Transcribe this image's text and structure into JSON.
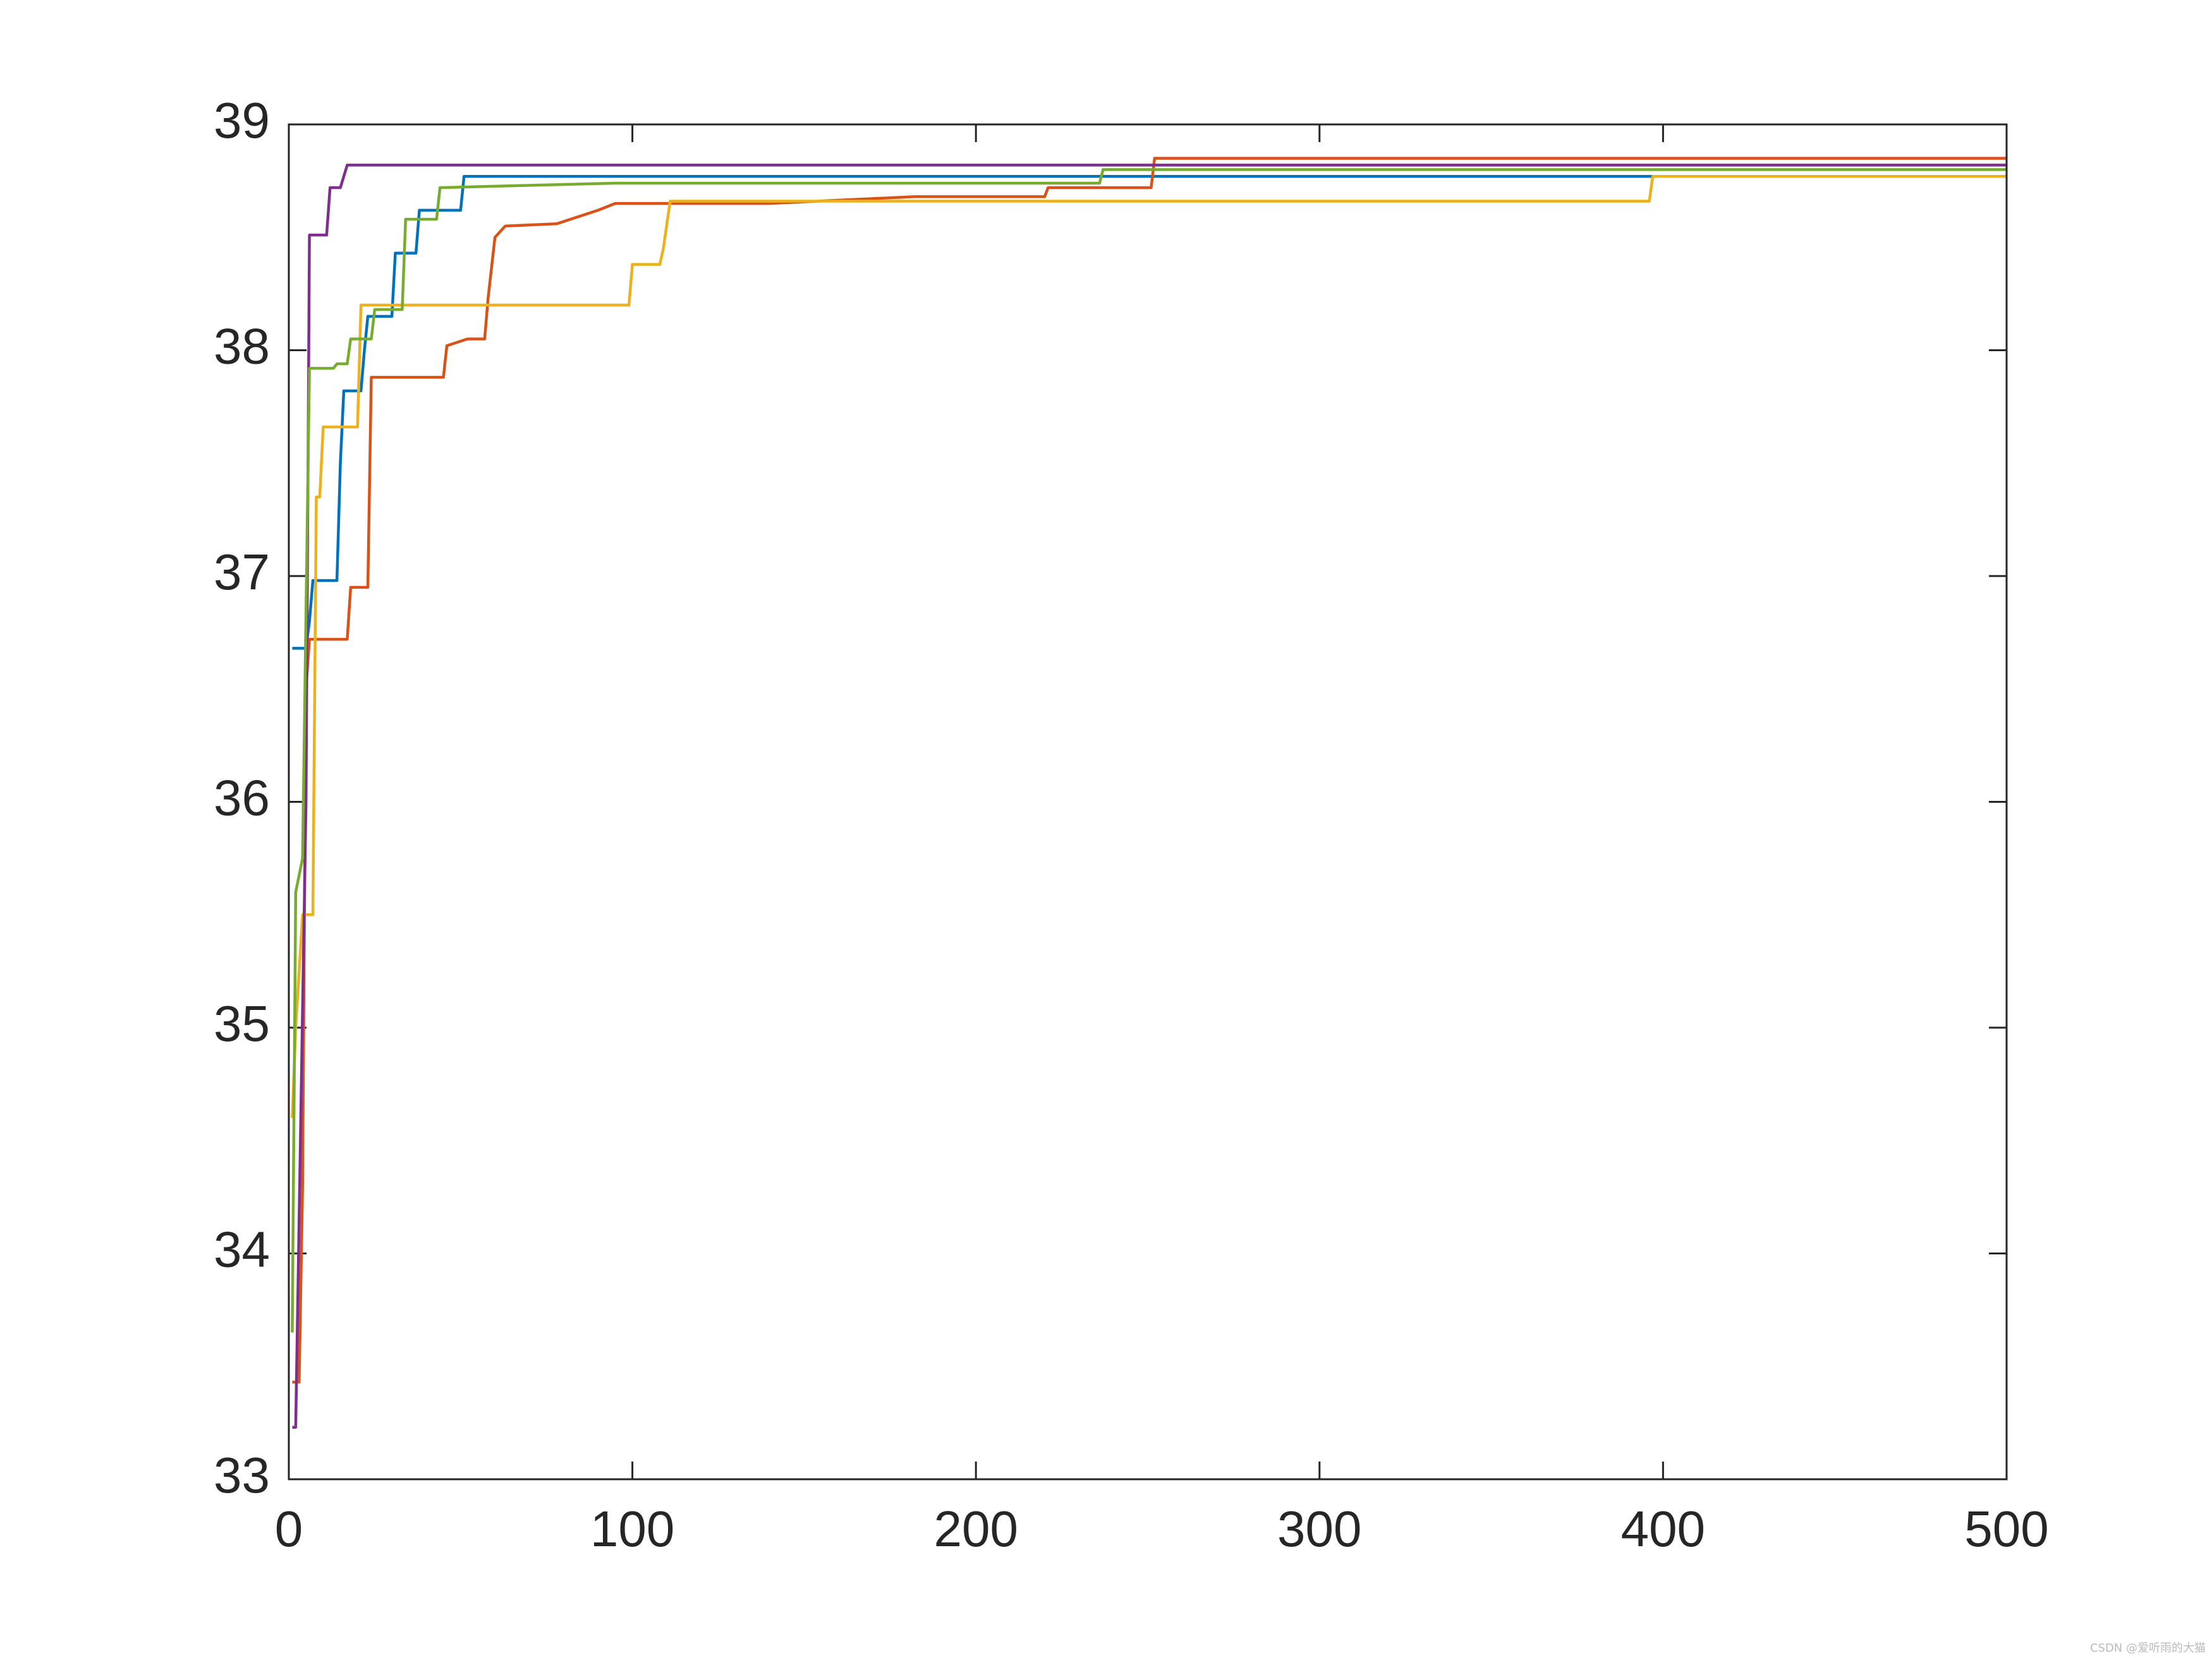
{
  "chart_data": {
    "type": "line",
    "xlim": [
      0,
      500
    ],
    "ylim": [
      33,
      39
    ],
    "xticks": [
      0,
      100,
      200,
      300,
      400,
      500
    ],
    "yticks": [
      33,
      34,
      35,
      36,
      37,
      38,
      39
    ],
    "series": [
      {
        "color": "#0072bd",
        "x": [
          1,
          5,
          6,
          7,
          14,
          15,
          16,
          21,
          22,
          23,
          30,
          31,
          37,
          38,
          50,
          51,
          500
        ],
        "values": [
          36.68,
          36.68,
          36.8,
          36.98,
          36.98,
          37.5,
          37.82,
          37.82,
          38.0,
          38.15,
          38.15,
          38.43,
          38.43,
          38.62,
          38.62,
          38.77,
          38.77
        ]
      },
      {
        "color": "#d95319",
        "x": [
          1,
          3,
          4,
          5,
          6,
          17,
          18,
          23,
          24,
          45,
          46,
          52,
          57,
          58,
          60,
          63,
          78,
          90,
          95,
          140,
          182,
          220,
          221,
          251,
          252,
          500
        ],
        "values": [
          33.43,
          33.43,
          34.3,
          36.5,
          36.72,
          36.72,
          36.95,
          36.95,
          37.88,
          37.88,
          38.02,
          38.05,
          38.05,
          38.23,
          38.5,
          38.55,
          38.56,
          38.62,
          38.65,
          38.65,
          38.68,
          38.68,
          38.72,
          38.72,
          38.85,
          38.85
        ]
      },
      {
        "color": "#edb120",
        "x": [
          1,
          2,
          4,
          7,
          8,
          9,
          10,
          20,
          21,
          99,
          100,
          108,
          109,
          111,
          396,
          397,
          500
        ],
        "values": [
          34.6,
          35.0,
          35.5,
          35.5,
          37.35,
          37.35,
          37.66,
          37.66,
          38.2,
          38.2,
          38.38,
          38.38,
          38.45,
          38.66,
          38.66,
          38.77,
          38.77
        ]
      },
      {
        "color": "#7e2f8e",
        "x": [
          1,
          2,
          5,
          6,
          11,
          12,
          15,
          17,
          500
        ],
        "values": [
          33.23,
          33.23,
          36.0,
          38.51,
          38.51,
          38.72,
          38.72,
          38.82,
          38.82
        ]
      },
      {
        "color": "#77ac30",
        "x": [
          1,
          2,
          4,
          6,
          13,
          14,
          17,
          18,
          24,
          25,
          33,
          34,
          43,
          44,
          95,
          236,
          237,
          500
        ],
        "values": [
          33.65,
          35.6,
          35.75,
          37.92,
          37.92,
          37.94,
          37.94,
          38.05,
          38.05,
          38.18,
          38.18,
          38.58,
          38.58,
          38.72,
          38.74,
          38.74,
          38.8,
          38.8
        ]
      }
    ]
  },
  "watermark": "CSDN @爱听雨的大猫"
}
